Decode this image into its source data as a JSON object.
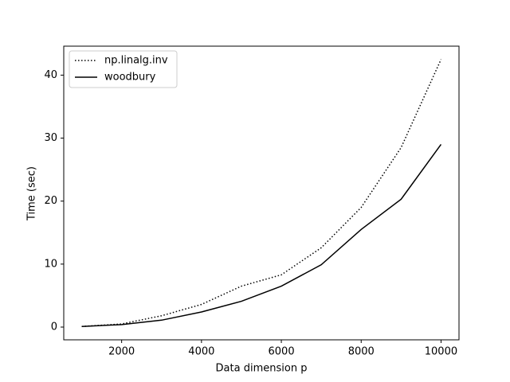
{
  "chart_data": {
    "type": "line",
    "xlabel": "Data dimension p",
    "ylabel": "Time (sec)",
    "x": [
      1000,
      2000,
      3000,
      4000,
      5000,
      6000,
      7000,
      8000,
      9000,
      10000
    ],
    "series": [
      {
        "name": "np.linalg.inv",
        "color": "#000000",
        "style": "dotted",
        "values": [
          0.1,
          0.5,
          1.8,
          3.6,
          6.5,
          8.3,
          12.6,
          19.0,
          28.5,
          42.5
        ]
      },
      {
        "name": "woodbury",
        "color": "#000000",
        "style": "solid",
        "values": [
          0.1,
          0.4,
          1.1,
          2.4,
          4.1,
          6.5,
          9.9,
          15.5,
          20.3,
          29.0
        ]
      }
    ],
    "xlim": [
      550,
      10450
    ],
    "ylim": [
      -2.02,
      44.6
    ],
    "xticks": [
      2000,
      4000,
      6000,
      8000,
      10000
    ],
    "yticks": [
      0,
      10,
      20,
      30,
      40
    ],
    "legend": "upper left"
  }
}
